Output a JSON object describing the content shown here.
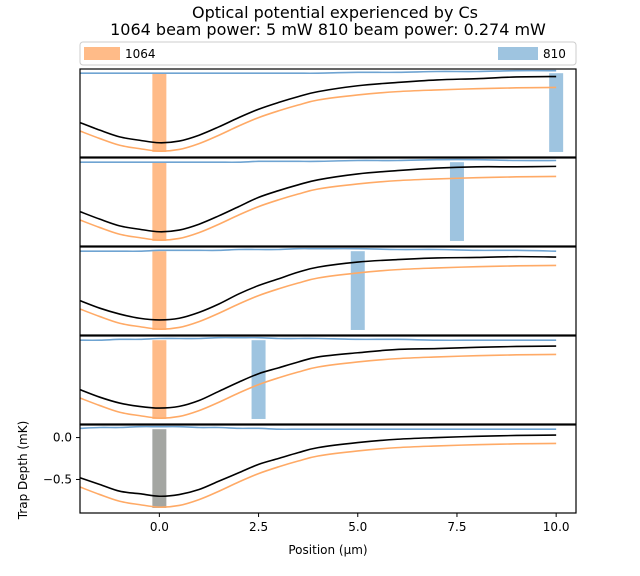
{
  "chart_data": {
    "type": "line",
    "title": "Optical potential experienced by Cs",
    "subtitle": "1064 beam power: 5 mW   810 beam power: 0.274 mW",
    "xlabel": "Position (μm)",
    "ylabel": "Trap Depth (mK)",
    "xlim": [
      -2.0,
      10.5
    ],
    "ylim": [
      -0.9,
      0.15
    ],
    "x_ticks": [
      0.0,
      2.5,
      5.0,
      7.5,
      10.0
    ],
    "x_tick_labels": [
      "0.0",
      "2.5",
      "5.0",
      "7.5",
      "10.0"
    ],
    "y_ticks": [
      0.0,
      -0.5
    ],
    "y_tick_labels": [
      "0.0",
      "−0.5"
    ],
    "grid": false,
    "legend": {
      "placement": "top",
      "entries": [
        {
          "label": "1064",
          "color": "#ffbb88"
        },
        {
          "label": "810",
          "color": "#9ec4e0"
        }
      ]
    },
    "colors": {
      "beam_1064": "#ffbb88",
      "beam_810": "#9ec4e0",
      "overlap": "#a4a6a2",
      "curve_1064": "#ffaa66",
      "curve_810": "#6fa4d2",
      "curve_total": "#000000"
    },
    "beam_1064_position": 0.0,
    "panels": [
      {
        "beam_810_position": 10.0
      },
      {
        "beam_810_position": 7.5
      },
      {
        "beam_810_position": 5.0
      },
      {
        "beam_810_position": 2.5
      },
      {
        "beam_810_position": 0.0
      }
    ],
    "curves": {
      "x": [
        -2.0,
        -1.5,
        -1.0,
        -0.5,
        0.0,
        0.5,
        1.0,
        1.5,
        2.0,
        2.5,
        3.0,
        3.5,
        4.0,
        5.0,
        6.0,
        7.0,
        8.0,
        9.0,
        10.0
      ],
      "potential_1064": [
        -0.59,
        -0.68,
        -0.76,
        -0.8,
        -0.83,
        -0.81,
        -0.74,
        -0.64,
        -0.53,
        -0.43,
        -0.35,
        -0.28,
        -0.22,
        -0.16,
        -0.12,
        -0.1,
        -0.085,
        -0.075,
        -0.07
      ],
      "potential_810_panels": [
        [
          0.1,
          0.1,
          0.1,
          0.1,
          0.1,
          0.1,
          0.1,
          0.1,
          0.1,
          0.1,
          0.1,
          0.1,
          0.1,
          0.11,
          0.11,
          0.12,
          0.12,
          0.13,
          0.13
        ],
        [
          0.1,
          0.1,
          0.1,
          0.1,
          0.1,
          0.1,
          0.1,
          0.1,
          0.1,
          0.11,
          0.11,
          0.11,
          0.11,
          0.12,
          0.12,
          0.13,
          0.13,
          0.12,
          0.12
        ],
        [
          0.1,
          0.1,
          0.1,
          0.1,
          0.11,
          0.11,
          0.11,
          0.11,
          0.12,
          0.12,
          0.12,
          0.13,
          0.13,
          0.13,
          0.12,
          0.12,
          0.11,
          0.11,
          0.1
        ],
        [
          0.1,
          0.1,
          0.11,
          0.11,
          0.12,
          0.12,
          0.12,
          0.13,
          0.13,
          0.13,
          0.12,
          0.12,
          0.12,
          0.11,
          0.11,
          0.1,
          0.1,
          0.1,
          0.1
        ],
        [
          0.11,
          0.12,
          0.12,
          0.13,
          0.13,
          0.13,
          0.12,
          0.12,
          0.11,
          0.11,
          0.1,
          0.1,
          0.1,
          0.1,
          0.1,
          0.1,
          0.1,
          0.1,
          0.1
        ]
      ],
      "potential_total_panels": [
        [
          -0.49,
          -0.58,
          -0.66,
          -0.7,
          -0.73,
          -0.71,
          -0.64,
          -0.54,
          -0.43,
          -0.33,
          -0.25,
          -0.18,
          -0.12,
          -0.05,
          -0.01,
          0.02,
          0.035,
          0.055,
          0.06
        ],
        [
          -0.49,
          -0.58,
          -0.66,
          -0.7,
          -0.73,
          -0.71,
          -0.64,
          -0.54,
          -0.43,
          -0.32,
          -0.24,
          -0.17,
          -0.11,
          -0.04,
          0.0,
          0.03,
          0.045,
          0.045,
          0.05
        ],
        [
          -0.49,
          -0.58,
          -0.65,
          -0.7,
          -0.72,
          -0.7,
          -0.63,
          -0.53,
          -0.41,
          -0.31,
          -0.23,
          -0.15,
          -0.09,
          -0.03,
          0.0,
          0.02,
          0.025,
          0.035,
          0.03
        ],
        [
          -0.49,
          -0.58,
          -0.65,
          -0.69,
          -0.71,
          -0.69,
          -0.62,
          -0.51,
          -0.4,
          -0.3,
          -0.23,
          -0.16,
          -0.1,
          -0.05,
          -0.01,
          0.0,
          0.015,
          0.025,
          0.03
        ],
        [
          -0.48,
          -0.56,
          -0.64,
          -0.67,
          -0.7,
          -0.68,
          -0.62,
          -0.52,
          -0.42,
          -0.32,
          -0.25,
          -0.18,
          -0.12,
          -0.06,
          -0.02,
          0.0,
          0.015,
          0.025,
          0.03
        ]
      ]
    }
  }
}
